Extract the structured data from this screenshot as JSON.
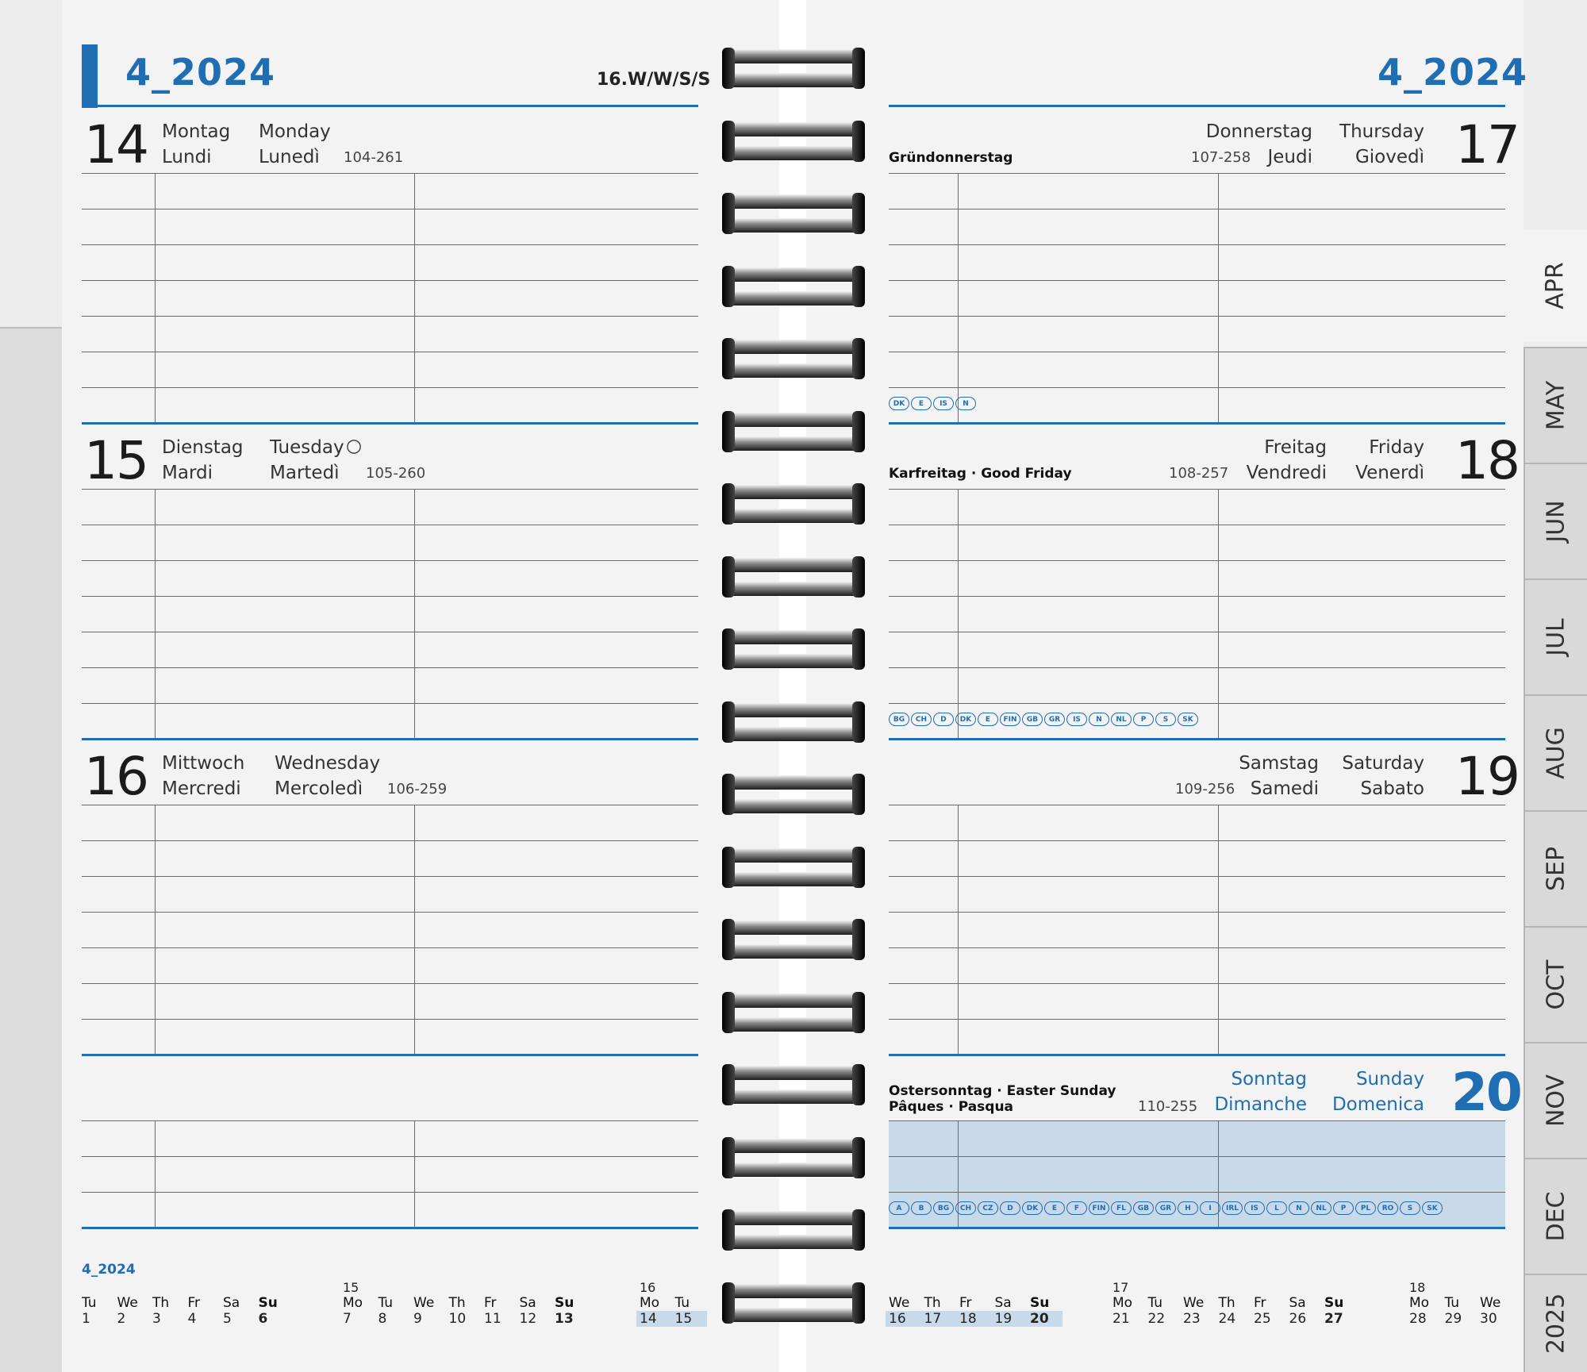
{
  "left": {
    "month_title": "4_2024",
    "week_tag": "16.W/W/S/S",
    "days": [
      {
        "num": "14",
        "de": "Montag",
        "fr": "Lundi",
        "en": "Monday",
        "it": "Lunedì",
        "code": "104-261",
        "moon": ""
      },
      {
        "num": "15",
        "de": "Dienstag",
        "fr": "Mardi",
        "en": "Tuesday",
        "it": "Martedì",
        "code": "105-260",
        "moon": "○"
      },
      {
        "num": "16",
        "de": "Mittwoch",
        "fr": "Mercredi",
        "en": "Wednesday",
        "it": "Mercoledì",
        "code": "106-259",
        "moon": ""
      }
    ]
  },
  "right": {
    "month_title": "4_2024",
    "days": [
      {
        "num": "17",
        "de": "Donnerstag",
        "fr": "Jeudi",
        "en": "Thursday",
        "it": "Giovedì",
        "code": "107-258",
        "holiday": "Gründonnerstag",
        "holiday2": "",
        "countries": [
          "DK",
          "E",
          "IS",
          "N"
        ]
      },
      {
        "num": "18",
        "de": "Freitag",
        "fr": "Vendredi",
        "en": "Friday",
        "it": "Venerdì",
        "code": "108-257",
        "holiday": "Karfreitag · Good Friday",
        "holiday2": "",
        "countries": [
          "BG",
          "CH",
          "D",
          "DK",
          "E",
          "FIN",
          "GB",
          "GR",
          "IS",
          "N",
          "NL",
          "P",
          "S",
          "SK"
        ]
      },
      {
        "num": "19",
        "de": "Samstag",
        "fr": "Samedi",
        "en": "Saturday",
        "it": "Sabato",
        "code": "109-256",
        "holiday": "",
        "holiday2": "",
        "countries": []
      },
      {
        "num": "20",
        "de": "Sonntag",
        "fr": "Dimanche",
        "en": "Sunday",
        "it": "Domenica",
        "code": "110-255",
        "holiday": "Ostersonntag · Easter Sunday",
        "holiday2": "Pâques · Pasqua",
        "countries": [
          "A",
          "B",
          "BG",
          "CH",
          "CZ",
          "D",
          "DK",
          "E",
          "F",
          "FIN",
          "FL",
          "GB",
          "GR",
          "H",
          "I",
          "IRL",
          "IS",
          "L",
          "N",
          "NL",
          "P",
          "PL",
          "RO",
          "S",
          "SK"
        ]
      }
    ]
  },
  "tabs": [
    "APR",
    "MAY",
    "JUN",
    "JUL",
    "AUG",
    "SEP",
    "OCT",
    "NOV",
    "DEC",
    "2025"
  ],
  "mini_calendar": {
    "label": "4_2024",
    "groups": [
      {
        "week": "",
        "days": [
          [
            "Tu",
            "1"
          ],
          [
            "We",
            "2"
          ],
          [
            "Th",
            "3"
          ],
          [
            "Fr",
            "4"
          ],
          [
            "Sa",
            "5"
          ],
          [
            "Su",
            "6"
          ]
        ]
      },
      {
        "week": "15",
        "days": [
          [
            "Mo",
            "7"
          ],
          [
            "Tu",
            "8"
          ],
          [
            "We",
            "9"
          ],
          [
            "Th",
            "10"
          ],
          [
            "Fr",
            "11"
          ],
          [
            "Sa",
            "12"
          ],
          [
            "Su",
            "13"
          ]
        ]
      },
      {
        "week": "16",
        "days": [
          [
            "Mo",
            "14"
          ],
          [
            "Tu",
            "15"
          ]
        ]
      },
      {
        "week": "",
        "days": [
          [
            "We",
            "16"
          ],
          [
            "Th",
            "17"
          ],
          [
            "Fr",
            "18"
          ],
          [
            "Sa",
            "19"
          ],
          [
            "Su",
            "20"
          ]
        ]
      },
      {
        "week": "17",
        "days": [
          [
            "Mo",
            "21"
          ],
          [
            "Tu",
            "22"
          ],
          [
            "We",
            "23"
          ],
          [
            "Th",
            "24"
          ],
          [
            "Fr",
            "25"
          ],
          [
            "Sa",
            "26"
          ],
          [
            "Su",
            "27"
          ]
        ]
      },
      {
        "week": "18",
        "days": [
          [
            "Mo",
            "28"
          ],
          [
            "Tu",
            "29"
          ],
          [
            "We",
            "30"
          ]
        ]
      }
    ]
  },
  "colors": {
    "accent": "#1f6db2",
    "highlight": "#c8d9ea"
  }
}
